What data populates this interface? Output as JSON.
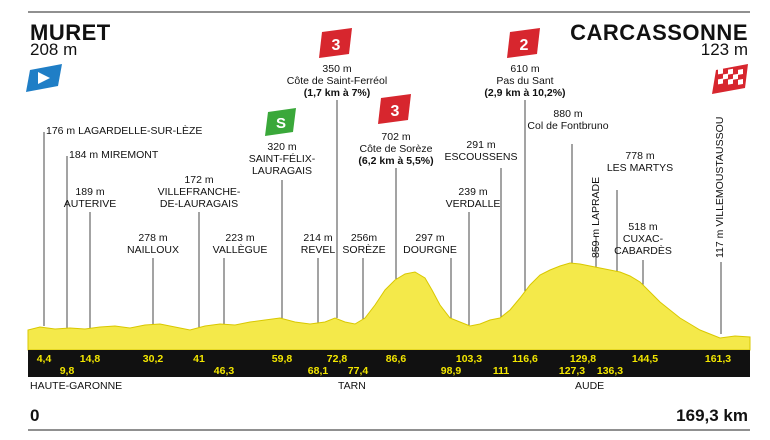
{
  "start": {
    "name": "MURET",
    "altitude": "208 m"
  },
  "finish": {
    "name": "CARCASSONNE",
    "altitude": "123 m"
  },
  "distance": {
    "start": "0",
    "end": "169,3 km"
  },
  "climbs": [
    {
      "category": "3",
      "altitude": "350 m",
      "name": "Côte de Saint-Ferréol",
      "detail": "(1,7 km à 7%)"
    },
    {
      "category": "3",
      "altitude": "702 m",
      "name": "Côte de Sorèze",
      "detail": "(6,2 km à 5,5%)"
    },
    {
      "category": "2",
      "altitude": "610 m",
      "name": "Pas du Sant",
      "detail": "(2,9 km à 10,2%)"
    }
  ],
  "sprint": {
    "badge": "S",
    "altitude": "320 m",
    "name_line1": "SAINT-FÉLIX-",
    "name_line2": "LAURAGAIS"
  },
  "places": {
    "lagardelle": "176 m LAGARDELLE-SUR-LÈZE",
    "miremont": "184 m MIREMONT",
    "auterive_alt": "189 m",
    "auterive": "AUTERIVE",
    "nailloux": "278 m",
    "nailloux_name": "NAILLOUX",
    "villefranche_alt": "172 m",
    "villefranche_1": "VILLEFRANCHE-",
    "villefranche_2": "DE-LAURAGAIS",
    "vallegue_alt": "223 m",
    "vallegue": "VALLÈGUE",
    "revel_alt": "214 m",
    "revel": "REVEL",
    "soreze_alt": "256m",
    "soreze": "SORÈZE",
    "dourgne_alt": "297 m",
    "dourgne": "DOURGNE",
    "verdalle_alt": "239 m",
    "verdalle": "VERDALLE",
    "escoussens_alt": "291 m",
    "escoussens": "ESCOUSSENS",
    "fontbruno_alt": "880 m",
    "fontbruno": "Col de Fontbruno",
    "lapradle": "859 m LAPRADE",
    "martys_alt": "778 m",
    "martys": "LES MARTYS",
    "cuxac_alt": "518 m",
    "cuxac_1": "CUXAC-",
    "cuxac_2": "CABARDÈS",
    "villemoustaussou": "117 m VILLEMOUSTAUSSOU"
  },
  "km_marks_top": [
    "4,4",
    "14,8",
    "30,2",
    "41",
    "59,8",
    "72,8",
    "86,6",
    "103,3",
    "116,6",
    "129,8",
    "144,5",
    "161,3"
  ],
  "km_marks_bottom": [
    "9,8",
    "46,3",
    "68,1",
    "77,4",
    "98,9",
    "111",
    "127,3",
    "136,3"
  ],
  "regions": [
    "HAUTE-GARONNE",
    "TARN",
    "AUDE"
  ],
  "colors": {
    "profile": "#f4e94a",
    "profile_edge": "#d9c800",
    "band": "#111111",
    "km_text": "#f2e600",
    "cat3": "#d7262e",
    "cat2": "#d7262e",
    "sprint": "#3aa83a",
    "start_flag": "#1f7ec6"
  }
}
